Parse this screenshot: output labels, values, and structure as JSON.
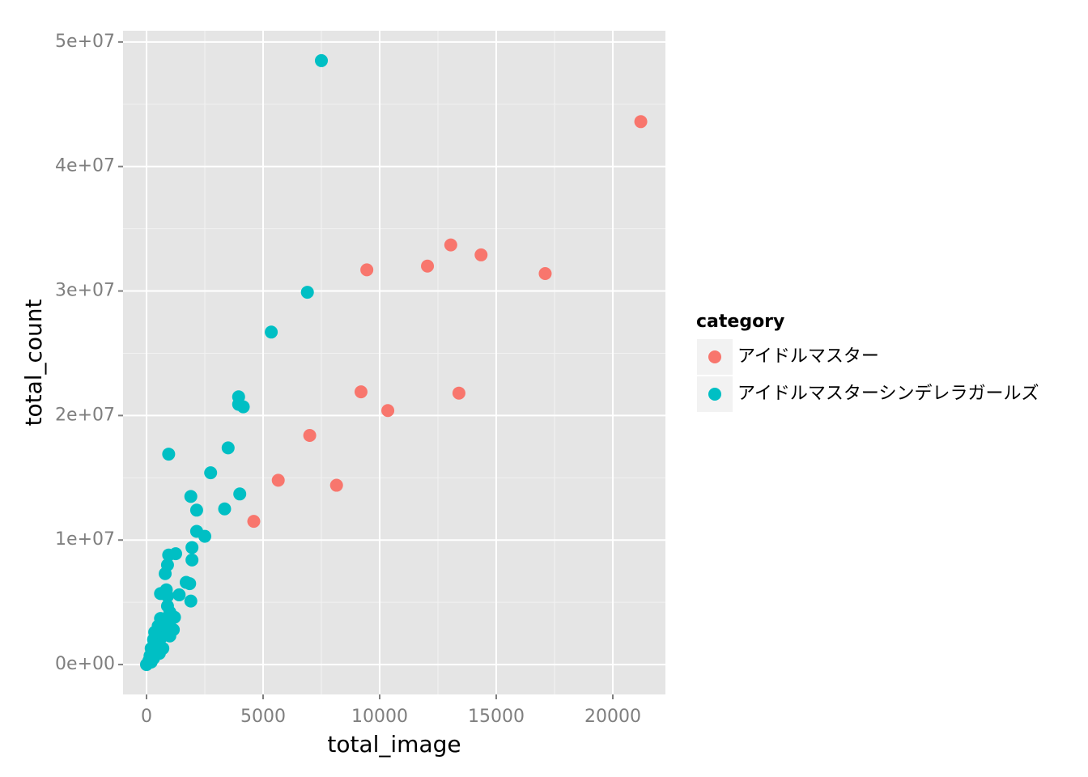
{
  "chart_data": {
    "type": "scatter",
    "x_label": "total_image",
    "y_label": "total_count",
    "xlim": [
      -1007,
      22257
    ],
    "ylim": [
      -2400000,
      50900000
    ],
    "xticks": [
      0,
      5000,
      10000,
      15000,
      20000
    ],
    "yticks": [
      {
        "value": 0,
        "label": "0e+00"
      },
      {
        "value": 10000000,
        "label": "1e+07"
      },
      {
        "value": 20000000,
        "label": "2e+07"
      },
      {
        "value": 30000000,
        "label": "3e+07"
      },
      {
        "value": 40000000,
        "label": "4e+07"
      },
      {
        "value": 50000000,
        "label": "5e+07"
      }
    ],
    "grid": true,
    "legend_title": "category",
    "legend_position": "right",
    "series": [
      {
        "name": "アイドルマスター",
        "color": "#F8766D",
        "x": [
          21200,
          13050,
          14350,
          12050,
          9450,
          17100,
          9200,
          13400,
          10350,
          7000,
          5650,
          8150,
          4600
        ],
        "y": [
          43600000,
          33700000,
          32900000,
          32000000,
          31700000,
          31400000,
          21900000,
          21800000,
          20400000,
          18400000,
          14800000,
          14400000,
          11500000
        ]
      },
      {
        "name": "アイドルマスターシンデレラガールズ",
        "color": "#00BFC4",
        "x": [
          7500,
          6900,
          5350,
          3950,
          3950,
          4150,
          950,
          3500,
          2750,
          1900,
          4000,
          3350,
          2150,
          2150,
          2500,
          1950,
          950,
          1250,
          1950,
          900,
          800,
          1700,
          1850,
          850,
          600,
          1400,
          900,
          1900,
          900,
          1000,
          600,
          800,
          1200,
          500,
          900,
          1150,
          350,
          700,
          1000,
          300,
          600,
          450,
          200,
          700,
          400,
          550,
          150,
          300,
          100,
          50,
          200,
          0
        ],
        "y": [
          48500000,
          29900000,
          26700000,
          21500000,
          20900000,
          20700000,
          16900000,
          17400000,
          15400000,
          13500000,
          13700000,
          12500000,
          12400000,
          10700000,
          10300000,
          9400000,
          8800000,
          8900000,
          8400000,
          8000000,
          7300000,
          6600000,
          6500000,
          6000000,
          5700000,
          5600000,
          5500000,
          5100000,
          4700000,
          4200000,
          3700000,
          3600000,
          3800000,
          3100000,
          3200000,
          2800000,
          2600000,
          2600000,
          2300000,
          2000000,
          2100000,
          1600000,
          1300000,
          1300000,
          1000000,
          900000,
          700000,
          500000,
          300000,
          100000,
          200000,
          0
        ]
      }
    ]
  }
}
